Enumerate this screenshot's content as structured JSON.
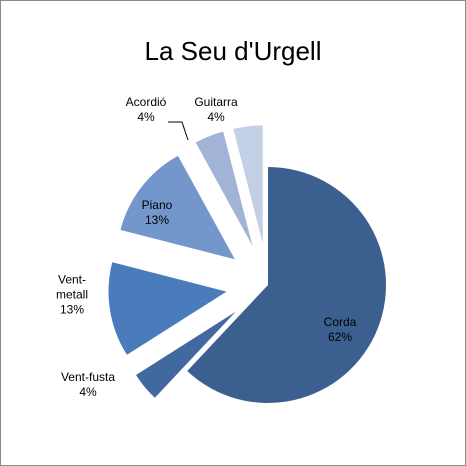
{
  "chart_data": {
    "type": "pie",
    "title": "La Seu d'Urgell",
    "categories": [
      "Corda",
      "Vent-fusta",
      "Vent-metall",
      "Piano",
      "Acordió",
      "Guitarra"
    ],
    "values": [
      62,
      4,
      13,
      13,
      4,
      4
    ],
    "value_labels": [
      "62%",
      "4%",
      "13%",
      "13%",
      "4%",
      "4%"
    ],
    "colors": [
      "#3b5f8e",
      "#41699f",
      "#4a7cbc",
      "#7396cb",
      "#a1b4d7",
      "#c3cfe5"
    ]
  }
}
